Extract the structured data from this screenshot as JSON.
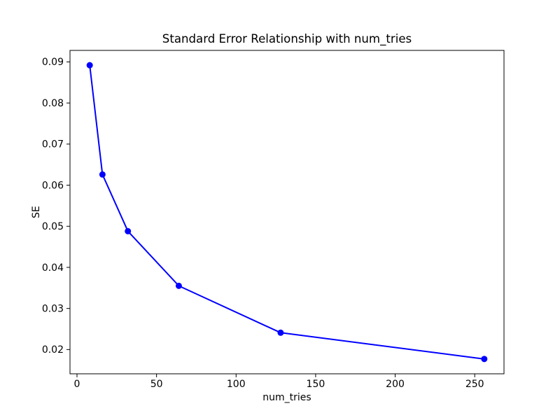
{
  "chart_data": {
    "type": "line",
    "title": "Standard Error Relationship with num_tries",
    "xlabel": "num_tries",
    "ylabel": "SE",
    "x": [
      8,
      16,
      32,
      64,
      128,
      256
    ],
    "y": [
      0.0892,
      0.0626,
      0.0488,
      0.0355,
      0.0241,
      0.0177
    ],
    "xlim": [
      -4.4,
      268.4
    ],
    "ylim": [
      0.0141,
      0.0928
    ],
    "xticks": [
      0,
      50,
      100,
      150,
      200,
      250
    ],
    "xtick_labels": [
      "0",
      "50",
      "100",
      "150",
      "200",
      "250"
    ],
    "yticks": [
      0.02,
      0.03,
      0.04,
      0.05,
      0.06,
      0.07,
      0.08,
      0.09
    ],
    "ytick_labels": [
      "0.02",
      "0.03",
      "0.04",
      "0.05",
      "0.06",
      "0.07",
      "0.08",
      "0.09"
    ],
    "line_color": "#0000ff",
    "marker": "circle",
    "marker_color": "#0000ff",
    "axis_color": "#000000",
    "background_color": "#ffffff",
    "grid": false,
    "legend": null
  }
}
